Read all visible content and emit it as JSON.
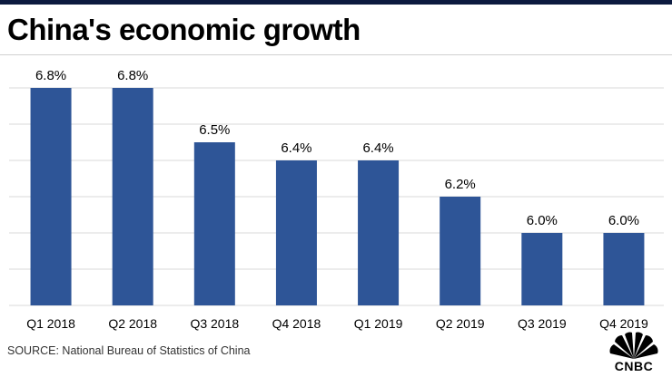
{
  "header": {
    "title": "China's economic growth"
  },
  "source": "SOURCE: National Bureau of Statistics of China",
  "logo": {
    "text": "CNBC",
    "icon": "peacock-icon"
  },
  "colors": {
    "bar": "#2e5597",
    "topbar": "#0c1a3f",
    "gridline": "#d9d9d9"
  },
  "chart_data": {
    "type": "bar",
    "title": "China's economic growth",
    "xlabel": "",
    "ylabel": "",
    "categories": [
      "Q1 2018",
      "Q2 2018",
      "Q3 2018",
      "Q4 2018",
      "Q1 2019",
      "Q2 2019",
      "Q3 2019",
      "Q4 2019"
    ],
    "values": [
      6.8,
      6.8,
      6.5,
      6.4,
      6.4,
      6.2,
      6.0,
      6.0
    ],
    "data_labels": [
      "6.8%",
      "6.8%",
      "6.5%",
      "6.4%",
      "6.4%",
      "6.2%",
      "6.0%",
      "6.0%"
    ],
    "ylim": [
      5.6,
      6.8
    ],
    "grid": true,
    "legend": "none"
  }
}
